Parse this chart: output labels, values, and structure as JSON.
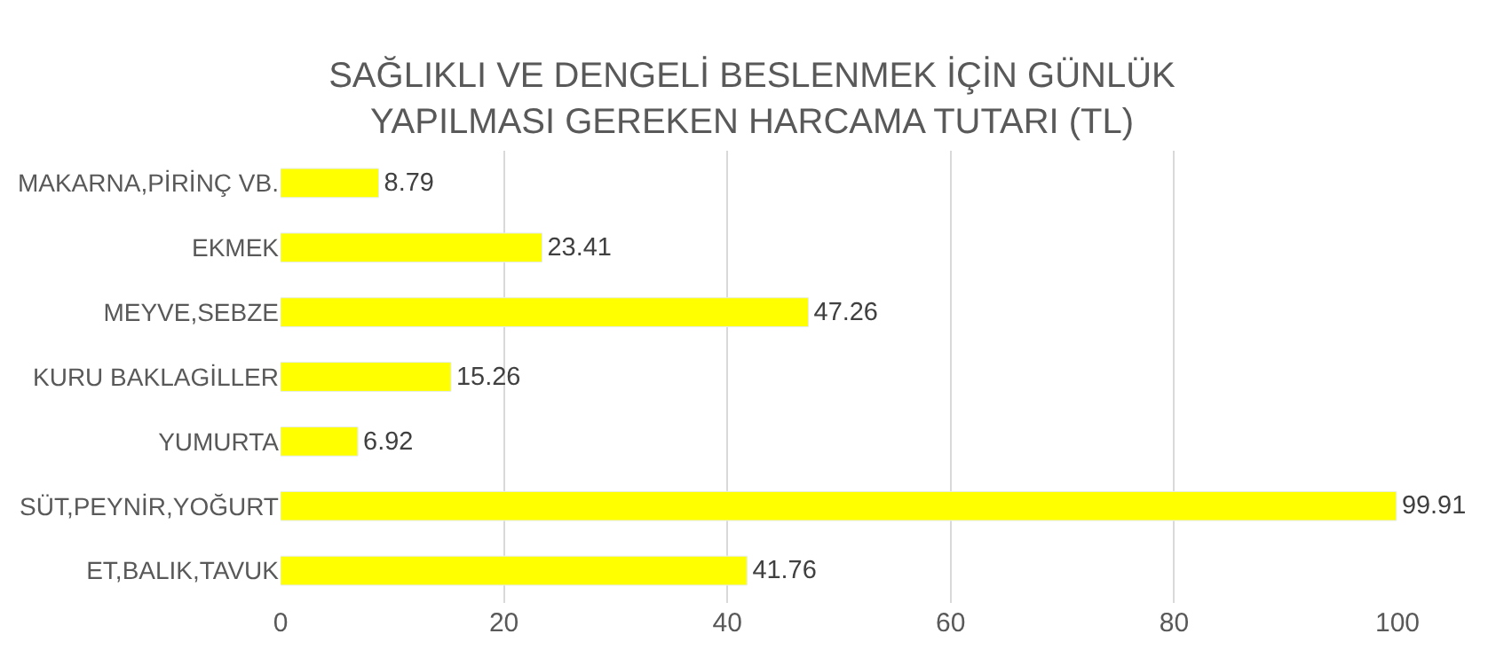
{
  "chart_data": {
    "type": "bar",
    "orientation": "horizontal",
    "title": "SAĞLIKLI VE DENGELİ BESLENMEK İÇİN GÜNLÜK YAPILMASI GEREKEN HARCAMA TUTARI (TL)",
    "categories": [
      "MAKARNA,PİRİNÇ VB.",
      "EKMEK",
      "MEYVE,SEBZE",
      "KURU BAKLAGİLLER",
      "YUMURTA",
      "SÜT,PEYNİR,YOĞURT",
      "ET,BALIK,TAVUK"
    ],
    "values": [
      8.79,
      23.41,
      47.26,
      15.26,
      6.92,
      99.91,
      41.76
    ],
    "color": "#ffff00",
    "xlim": [
      0,
      100
    ],
    "xticks": [
      0,
      20,
      40,
      60,
      80,
      100
    ],
    "grid": "x",
    "data_labels": true,
    "legend": false
  }
}
